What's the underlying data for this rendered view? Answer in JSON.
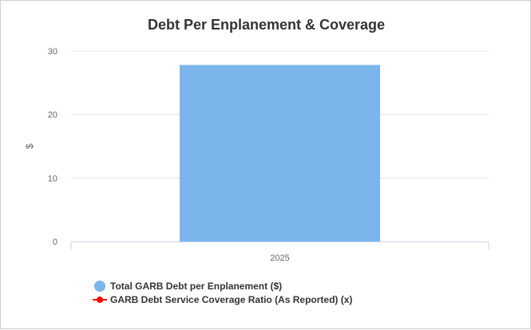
{
  "chart_data": {
    "type": "bar",
    "title": "Debt Per Enplanement & Coverage",
    "ylabel": "$",
    "categories": [
      "2025"
    ],
    "ylim": [
      0,
      30
    ],
    "yticks": [
      0,
      10,
      20,
      30
    ],
    "grid": true,
    "legend_position": "bottom-left",
    "series": [
      {
        "name": "Total GARB Debt per Enplanement ($)",
        "type": "bar",
        "values": [
          27.8
        ],
        "color": "#7cb5ec"
      },
      {
        "name": "GARB Debt Service Coverage Ratio (As Reported) (x)",
        "type": "line",
        "values": [
          null
        ],
        "color": "#ff0000"
      }
    ]
  }
}
